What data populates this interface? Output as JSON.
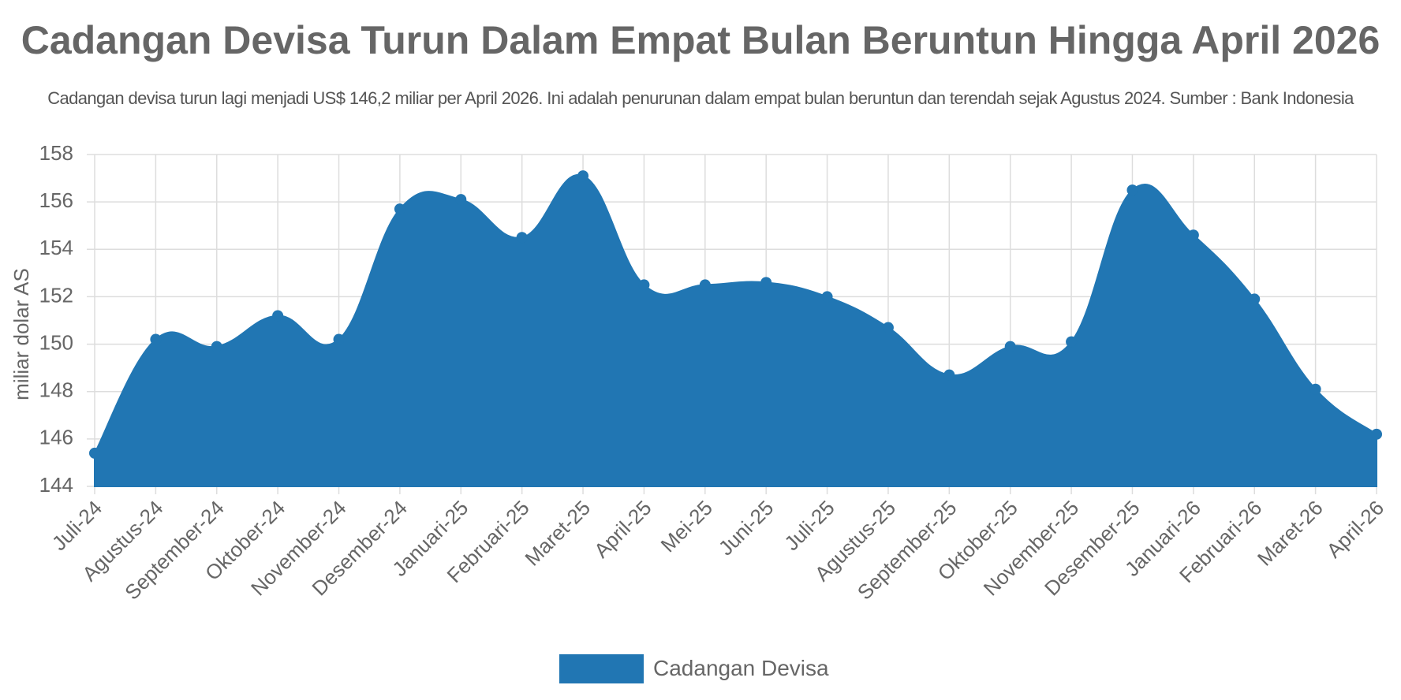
{
  "title": "Cadangan Devisa Turun Dalam Empat Bulan Beruntun Hingga April 2026",
  "subtitle": "Cadangan devisa turun lagi menjadi US$ 146,2 miliar per April 2026. Ini adalah penurunan dalam empat bulan beruntun dan terendah sejak Agustus 2024. Sumber : Bank Indonesia",
  "colors": {
    "series": "#2176b3",
    "grid": "#dddddd",
    "text": "#666666"
  },
  "chart_data": {
    "type": "area",
    "title": "Cadangan Devisa Turun Dalam Empat Bulan Beruntun Hingga April 2026",
    "subtitle": "Cadangan devisa turun lagi menjadi US$ 146,2 miliar per April 2026. Ini adalah penurunan dalam empat bulan beruntun dan terendah sejak Agustus 2024. Sumber : Bank Indonesia",
    "xlabel": "",
    "ylabel": "miliar dolar AS",
    "ylim": [
      144,
      158
    ],
    "yticks": [
      "144",
      "146",
      "148",
      "150",
      "152",
      "154",
      "156",
      "158"
    ],
    "categories": [
      "Juli-24",
      "Agustus-24",
      "September-24",
      "Oktober-24",
      "November-24",
      "Desember-24",
      "Januari-25",
      "Februari-25",
      "Maret-25",
      "April-25",
      "Mei-25",
      "Juni-25",
      "Juli-25",
      "Agustus-25",
      "September-25",
      "Oktober-25",
      "November-25",
      "Desember-25",
      "Januari-26",
      "Februari-26",
      "Maret-26",
      "April-26"
    ],
    "series": [
      {
        "name": "Cadangan Devisa",
        "color": "#2176b3",
        "values": [
          145.4,
          150.2,
          149.9,
          151.2,
          150.2,
          155.7,
          156.1,
          154.5,
          157.1,
          152.5,
          152.5,
          152.6,
          152.0,
          150.7,
          148.7,
          149.9,
          150.1,
          156.5,
          154.6,
          151.9,
          148.1,
          146.2
        ]
      }
    ],
    "grid": true,
    "legend": "bottom-center"
  }
}
